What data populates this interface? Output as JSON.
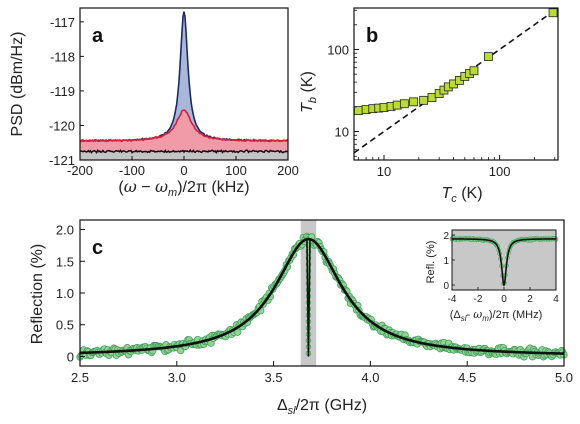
{
  "colors": {
    "blue_fill": "#a9b8da",
    "blue_line": "#1c2a66",
    "red_fill": "#f19aa8",
    "red_line": "#d6203a",
    "gray_fill": "#c4c4c4",
    "black_line": "#111111",
    "yellow_marker": "#b9dc2e",
    "green_marker": "#8fd48f",
    "green_marker_edge": "#3a9a5a",
    "shade": "#c8c8c8"
  },
  "chart_data": [
    {
      "panel": "a",
      "type": "area",
      "xlabel": "(ω − ω_m)/2π (kHz)",
      "ylabel": "PSD (dBm/Hz)",
      "xlim": [
        -200,
        200
      ],
      "ylim": [
        -121,
        -116.6
      ],
      "xticks": [
        -200,
        -100,
        0,
        100,
        200
      ],
      "yticks": [
        -121,
        -120,
        -119,
        -118,
        -117
      ],
      "series": [
        {
          "center_khz": 0,
          "peak_dbm": -116.7,
          "baseline_dbm": -120.45,
          "halfwidth_khz": 9
        },
        {
          "center_khz": 0,
          "peak_dbm": -119.55,
          "baseline_dbm": -120.45,
          "halfwidth_khz": 18
        },
        {
          "level_dbm": -120.75
        }
      ]
    },
    {
      "panel": "b",
      "type": "scatter",
      "xlabel": "T_c (K)",
      "ylabel": "T_b (K)",
      "xscale": "log",
      "yscale": "log",
      "xlim": [
        5.5,
        320
      ],
      "ylim": [
        4.5,
        320
      ],
      "xticks": [
        10,
        100
      ],
      "yticks": [
        10,
        100
      ],
      "x": [
        6,
        7,
        8,
        9,
        10,
        11.5,
        13,
        15,
        18,
        22,
        26,
        30,
        33,
        36,
        40,
        45,
        50,
        55,
        60,
        80,
        290
      ],
      "y": [
        18,
        18.5,
        19,
        19.3,
        19.6,
        20.2,
        21,
        21.8,
        23,
        24,
        26,
        29,
        32,
        35,
        38,
        42,
        47,
        51,
        55,
        82,
        280
      ],
      "fit_line": {
        "x": [
          5.5,
          300
        ],
        "y": [
          5.5,
          300
        ]
      }
    },
    {
      "panel": "c",
      "type": "scatter",
      "xlabel": "Δ_sl/2π (GHz)",
      "ylabel": "Reflection (%)",
      "xlim": [
        2.5,
        5.0
      ],
      "ylim": [
        -0.15,
        2.15
      ],
      "xticks": [
        2.5,
        3.0,
        3.5,
        4.0,
        4.5,
        5.0
      ],
      "yticks": [
        0,
        0.5,
        1.0,
        1.5,
        2.0
      ],
      "lorentzian": {
        "center_ghz": 3.68,
        "amplitude_pct": 1.85,
        "hwhm_ghz": 0.21,
        "offset_pct": 0.0
      },
      "notch": {
        "center_ghz": 3.68,
        "width_ghz": 0.006
      },
      "shaded_band_ghz": [
        3.64,
        3.72
      ],
      "inset": {
        "type": "scatter",
        "xlabel": "(Δ_sl − ω_m)/2π (MHz)",
        "ylabel": "Refl. (%)",
        "xlim": [
          -4,
          4
        ],
        "ylim": [
          -0.2,
          2.2
        ],
        "xticks": [
          -4,
          -2,
          0,
          2,
          4
        ],
        "yticks": [
          0,
          1,
          2
        ],
        "notch": {
          "center_mhz": 0,
          "depth_pct": 1.85,
          "halfwidth_mhz": 0.22,
          "level_pct": 1.85
        }
      }
    }
  ],
  "panel_labels": [
    "a",
    "b",
    "c"
  ],
  "text": {
    "a_tick_x": [
      "-200",
      "-100",
      "0",
      "100",
      "200"
    ],
    "a_tick_y": [
      "-121",
      "-120",
      "-119",
      "-118",
      "-117"
    ],
    "b_tick_x": [
      "10",
      "100"
    ],
    "b_tick_y": [
      "10",
      "100"
    ],
    "c_tick_x": [
      "2.5",
      "3.0",
      "3.5",
      "4.0",
      "4.5",
      "5.0"
    ],
    "c_tick_y": [
      "0",
      "0.5",
      "1.0",
      "1.5",
      "2.0"
    ],
    "inset_tick_x": [
      "-4",
      "-2",
      "0",
      "2",
      "4"
    ],
    "inset_tick_y": [
      "0",
      "1",
      "2"
    ]
  }
}
